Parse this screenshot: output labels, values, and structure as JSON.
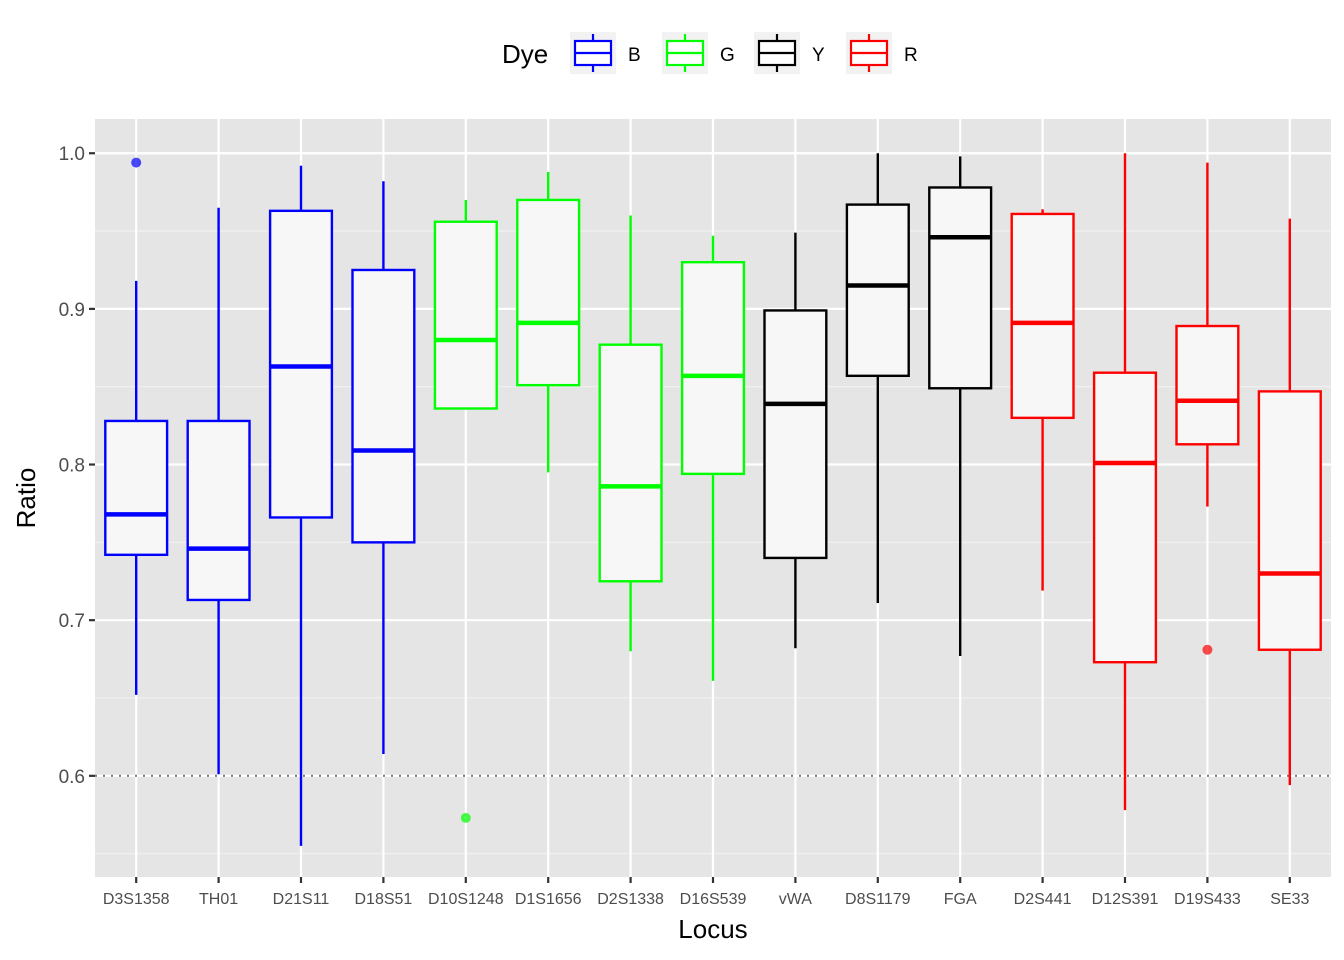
{
  "chart_data": {
    "type": "box",
    "xlabel": "Locus",
    "ylabel": "Ratio",
    "ylim": [
      0.535,
      1.022
    ],
    "yticks": [
      "0.6",
      "0.7",
      "0.8",
      "0.9",
      "1.0"
    ],
    "ytick_values": [
      0.6,
      0.7,
      0.8,
      0.9,
      1.0
    ],
    "reference_line": {
      "y": 0.6,
      "style": "dotted"
    },
    "legend": {
      "title": "Dye",
      "position": "top",
      "entries": [
        {
          "label": "B",
          "color": "#0000ff"
        },
        {
          "label": "G",
          "color": "#00ff00"
        },
        {
          "label": "Y",
          "color": "#000000"
        },
        {
          "label": "R",
          "color": "#ff0000"
        }
      ]
    },
    "categories": [
      "D3S1358",
      "TH01",
      "D21S11",
      "D18S51",
      "D10S1248",
      "D1S1656",
      "D2S1338",
      "D16S539",
      "vWA",
      "D8S1179",
      "FGA",
      "D2S441",
      "D12S391",
      "D19S433",
      "SE33"
    ],
    "boxes": [
      {
        "locus": "D3S1358",
        "dye": "B",
        "min": 0.652,
        "q1": 0.742,
        "median": 0.768,
        "q3": 0.828,
        "max": 0.918,
        "outliers": [
          0.994
        ]
      },
      {
        "locus": "TH01",
        "dye": "B",
        "min": 0.601,
        "q1": 0.713,
        "median": 0.746,
        "q3": 0.828,
        "max": 0.965,
        "outliers": []
      },
      {
        "locus": "D21S11",
        "dye": "B",
        "min": 0.555,
        "q1": 0.766,
        "median": 0.863,
        "q3": 0.963,
        "max": 0.992,
        "outliers": []
      },
      {
        "locus": "D18S51",
        "dye": "B",
        "min": 0.614,
        "q1": 0.75,
        "median": 0.809,
        "q3": 0.925,
        "max": 0.982,
        "outliers": []
      },
      {
        "locus": "D10S1248",
        "dye": "G",
        "min": 0.836,
        "q1": 0.836,
        "median": 0.88,
        "q3": 0.956,
        "max": 0.97,
        "outliers": [
          0.573
        ]
      },
      {
        "locus": "D1S1656",
        "dye": "G",
        "min": 0.795,
        "q1": 0.851,
        "median": 0.891,
        "q3": 0.97,
        "max": 0.988,
        "outliers": []
      },
      {
        "locus": "D2S1338",
        "dye": "G",
        "min": 0.68,
        "q1": 0.725,
        "median": 0.786,
        "q3": 0.877,
        "max": 0.96,
        "outliers": []
      },
      {
        "locus": "D16S539",
        "dye": "G",
        "min": 0.661,
        "q1": 0.794,
        "median": 0.857,
        "q3": 0.93,
        "max": 0.947,
        "outliers": []
      },
      {
        "locus": "vWA",
        "dye": "Y",
        "min": 0.682,
        "q1": 0.74,
        "median": 0.839,
        "q3": 0.899,
        "max": 0.949,
        "outliers": []
      },
      {
        "locus": "D8S1179",
        "dye": "Y",
        "min": 0.711,
        "q1": 0.857,
        "median": 0.915,
        "q3": 0.967,
        "max": 1.0,
        "outliers": []
      },
      {
        "locus": "FGA",
        "dye": "Y",
        "min": 0.677,
        "q1": 0.849,
        "median": 0.946,
        "q3": 0.978,
        "max": 0.998,
        "outliers": []
      },
      {
        "locus": "D2S441",
        "dye": "R",
        "min": 0.719,
        "q1": 0.83,
        "median": 0.891,
        "q3": 0.961,
        "max": 0.964,
        "outliers": []
      },
      {
        "locus": "D12S391",
        "dye": "R",
        "min": 0.578,
        "q1": 0.673,
        "median": 0.801,
        "q3": 0.859,
        "max": 1.0,
        "outliers": []
      },
      {
        "locus": "D19S433",
        "dye": "R",
        "min": 0.773,
        "q1": 0.813,
        "median": 0.841,
        "q3": 0.889,
        "max": 0.994,
        "outliers": [
          0.681
        ]
      },
      {
        "locus": "SE33",
        "dye": "R",
        "min": 0.594,
        "q1": 0.681,
        "median": 0.73,
        "q3": 0.847,
        "max": 0.958,
        "outliers": []
      }
    ]
  }
}
